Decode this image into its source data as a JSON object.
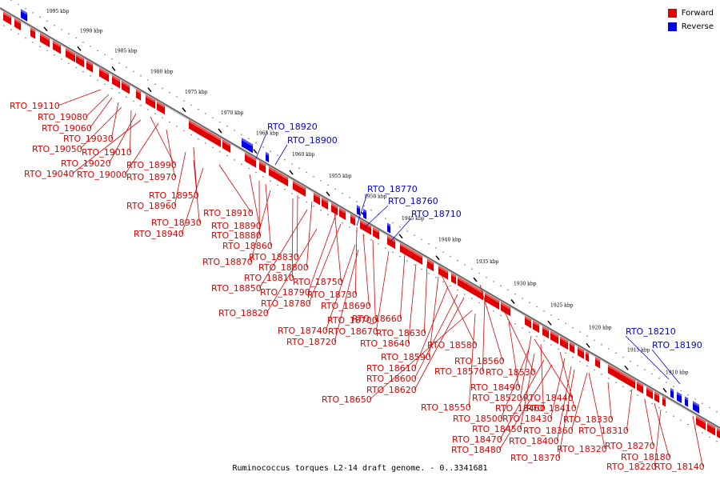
{
  "caption": "Ruminococcus torques L2-14 draft genome. - 0..3341681",
  "legend": [
    {
      "label": "Forward",
      "color": "#e00000"
    },
    {
      "label": "Reverse",
      "color": "#0000e6"
    }
  ],
  "colors": {
    "forward": "#e00000",
    "reverse": "#0000e6",
    "backbone": "#666666"
  },
  "axis": {
    "unit": "kbp",
    "ticks": [
      "1995 kbp",
      "1990 kbp",
      "1985 kbp",
      "1980 kbp",
      "1975 kbp",
      "1970 kbp",
      "1965 kbp",
      "1960 kbp",
      "1955 kbp",
      "1950 kbp",
      "1945 kbp",
      "1940 kbp",
      "1935 kbp",
      "1930 kbp",
      "1925 kbp",
      "1920 kbp",
      "1915 kbp",
      "1910 kbp"
    ]
  },
  "forward_genes": [
    "RTO_19110",
    "RTO_19080",
    "RTO_19060",
    "RTO_19030",
    "RTO_19050",
    "RTO_19010",
    "RTO_19020",
    "RTO_18990",
    "RTO_19040",
    "RTO_19000",
    "RTO_18970",
    "RTO_18950",
    "RTO_18960",
    "RTO_18910",
    "RTO_18930",
    "RTO_18890",
    "RTO_18940",
    "RTO_18880",
    "RTO_18860",
    "RTO_18830",
    "RTO_18870",
    "RTO_18800",
    "RTO_18810",
    "RTO_18750",
    "RTO_18850",
    "RTO_18790",
    "RTO_18730",
    "RTO_18780",
    "RTO_18690",
    "RTO_18820",
    "RTO_18660",
    "RTO_18700",
    "RTO_18740",
    "RTO_18670",
    "RTO_18630",
    "RTO_18720",
    "RTO_18640",
    "RTO_18580",
    "RTO_18590",
    "RTO_18560",
    "RTO_18610",
    "RTO_18570",
    "RTO_18530",
    "RTO_18600",
    "RTO_18490",
    "RTO_18620",
    "RTO_18520",
    "RTO_18440",
    "RTO_18650",
    "RTO_18550",
    "RTO_18460",
    "RTO_18410",
    "RTO_18500",
    "RTO_18430",
    "RTO_18450",
    "RTO_18360",
    "RTO_18330",
    "RTO_18470",
    "RTO_18400",
    "RTO_18320",
    "RTO_18310",
    "RTO_18480",
    "RTO_18370",
    "RTO_18270",
    "RTO_18180",
    "RTO_18220",
    "RTO_18140"
  ],
  "reverse_genes": [
    "RTO_18920",
    "RTO_18900",
    "RTO_18770",
    "RTO_18760",
    "RTO_18710",
    "RTO_18210",
    "RTO_18190"
  ]
}
